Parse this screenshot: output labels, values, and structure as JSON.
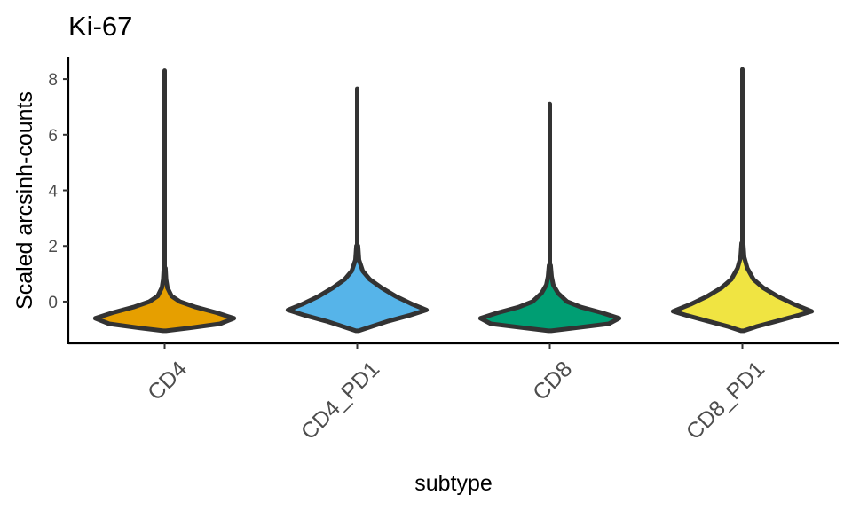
{
  "chart_data": {
    "type": "violin",
    "title": "Ki-67",
    "xlabel": "subtype",
    "ylabel": "Scaled arcsinh-counts",
    "ylim": [
      -1.5,
      8.8
    ],
    "yticks": [
      0,
      2,
      4,
      6,
      8
    ],
    "grid": false,
    "legend": "none",
    "categories": [
      "CD4",
      "CD4_PD1",
      "CD8",
      "CD8_PD1"
    ],
    "series": [
      {
        "category": "CD4",
        "color": "#E69F00",
        "min": -1.05,
        "max": 8.3,
        "mode": -0.6,
        "median": -0.55,
        "profile": [
          [
            -1.05,
            0.02
          ],
          [
            -0.95,
            0.35
          ],
          [
            -0.8,
            0.8
          ],
          [
            -0.6,
            1.0
          ],
          [
            -0.4,
            0.75
          ],
          [
            -0.2,
            0.45
          ],
          [
            0.0,
            0.22
          ],
          [
            0.2,
            0.1
          ],
          [
            0.5,
            0.04
          ],
          [
            0.8,
            0.02
          ],
          [
            1.2,
            0.012
          ]
        ]
      },
      {
        "category": "CD4_PD1",
        "color": "#56B4E9",
        "min": -1.05,
        "max": 7.65,
        "mode": -0.3,
        "median": -0.25,
        "profile": [
          [
            -1.05,
            0.02
          ],
          [
            -0.9,
            0.2
          ],
          [
            -0.7,
            0.45
          ],
          [
            -0.5,
            0.75
          ],
          [
            -0.3,
            1.0
          ],
          [
            -0.1,
            0.8
          ],
          [
            0.2,
            0.55
          ],
          [
            0.5,
            0.35
          ],
          [
            0.8,
            0.18
          ],
          [
            1.1,
            0.08
          ],
          [
            1.5,
            0.025
          ],
          [
            2.0,
            0.012
          ]
        ]
      },
      {
        "category": "CD8",
        "color": "#009E73",
        "min": -1.05,
        "max": 7.1,
        "mode": -0.6,
        "median": -0.5,
        "profile": [
          [
            -1.05,
            0.02
          ],
          [
            -0.95,
            0.35
          ],
          [
            -0.8,
            0.85
          ],
          [
            -0.6,
            1.0
          ],
          [
            -0.4,
            0.75
          ],
          [
            -0.2,
            0.45
          ],
          [
            0.0,
            0.25
          ],
          [
            0.3,
            0.12
          ],
          [
            0.6,
            0.05
          ],
          [
            0.9,
            0.025
          ],
          [
            1.3,
            0.012
          ]
        ]
      },
      {
        "category": "CD8_PD1",
        "color": "#F0E442",
        "min": -1.05,
        "max": 8.35,
        "mode": -0.35,
        "median": -0.25,
        "profile": [
          [
            -1.05,
            0.02
          ],
          [
            -0.9,
            0.2
          ],
          [
            -0.7,
            0.5
          ],
          [
            -0.5,
            0.8
          ],
          [
            -0.35,
            1.0
          ],
          [
            -0.1,
            0.75
          ],
          [
            0.2,
            0.5
          ],
          [
            0.5,
            0.3
          ],
          [
            0.8,
            0.16
          ],
          [
            1.2,
            0.07
          ],
          [
            1.6,
            0.025
          ],
          [
            2.1,
            0.012
          ]
        ]
      }
    ]
  }
}
